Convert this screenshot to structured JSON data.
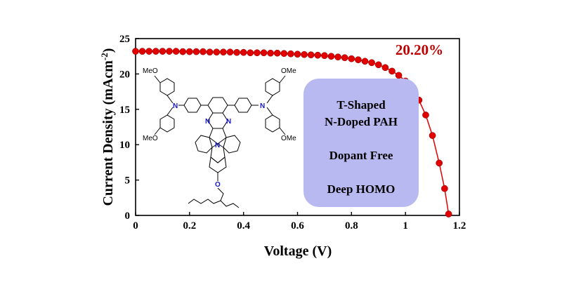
{
  "chart_data": {
    "type": "scatter",
    "xlabel": "Voltage (V)",
    "ylabel_main": "Current Density (mAcm",
    "ylabel_sup": "-2",
    "ylabel_close": ")",
    "xlim": [
      0,
      1.2
    ],
    "ylim": [
      0,
      25
    ],
    "xticks": [
      "0",
      "0.2",
      "0.4",
      "0.6",
      "0.8",
      "1",
      "1.2"
    ],
    "xtick_values": [
      0,
      0.2,
      0.4,
      0.6,
      0.8,
      1.0,
      1.2
    ],
    "yticks": [
      "0",
      "5",
      "10",
      "15",
      "20",
      "25"
    ],
    "ytick_values": [
      0,
      5,
      10,
      15,
      20,
      25
    ],
    "grid": false,
    "series": [
      {
        "color": "#e00000",
        "marker": "circle",
        "line": true,
        "x": [
          0.0,
          0.025,
          0.05,
          0.075,
          0.1,
          0.125,
          0.15,
          0.175,
          0.2,
          0.225,
          0.25,
          0.275,
          0.3,
          0.325,
          0.35,
          0.375,
          0.4,
          0.425,
          0.45,
          0.475,
          0.5,
          0.525,
          0.55,
          0.575,
          0.6,
          0.625,
          0.65,
          0.675,
          0.7,
          0.725,
          0.75,
          0.775,
          0.8,
          0.825,
          0.85,
          0.875,
          0.9,
          0.925,
          0.95,
          0.975,
          1.0,
          1.025,
          1.05,
          1.075,
          1.1,
          1.125,
          1.145,
          1.16
        ],
        "y": [
          23.2,
          23.2,
          23.2,
          23.2,
          23.2,
          23.2,
          23.2,
          23.15,
          23.15,
          23.15,
          23.15,
          23.1,
          23.1,
          23.1,
          23.1,
          23.05,
          23.05,
          23.0,
          23.0,
          23.0,
          22.95,
          22.95,
          22.9,
          22.85,
          22.8,
          22.75,
          22.7,
          22.65,
          22.6,
          22.5,
          22.4,
          22.3,
          22.15,
          22.0,
          21.8,
          21.6,
          21.3,
          20.9,
          20.4,
          19.8,
          19.0,
          17.9,
          16.3,
          14.2,
          11.3,
          7.4,
          3.8,
          0.2
        ]
      }
    ],
    "annotation": "20.20%",
    "annotation_color": "#c00000"
  },
  "info_box": {
    "line1": "T-Shaped",
    "line2": "N-Doped PAH",
    "line3": "Dopant Free",
    "line4": "Deep HOMO",
    "fill": "#b9b9f2"
  },
  "molecule": {
    "methoxy_label": "MeO",
    "methoxy_label_right": "OMe",
    "nitrogen": "N",
    "oxygen": "O",
    "n_color": "#1515d0",
    "o_color": "#1515d0"
  }
}
